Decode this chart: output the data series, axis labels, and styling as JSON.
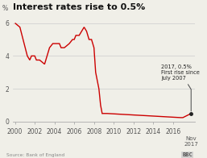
{
  "title": "Interest rates rise to 0.5%",
  "source": "Source: Bank of England",
  "ylabel": "%",
  "background_color": "#f0efe8",
  "line_color": "#cc0000",
  "annotation_text": "2017, 0.5%\nFirst rise since\nJuly 2007",
  "dot_color": "#222222",
  "xlim": [
    1999.8,
    2018.2
  ],
  "ylim": [
    0,
    6.6
  ],
  "yticks": [
    0,
    2,
    4,
    6
  ],
  "xticks": [
    2000,
    2002,
    2004,
    2006,
    2008,
    2010,
    2012,
    2014,
    2016
  ],
  "nov2017_x": 2017.83,
  "data_x": [
    2000.0,
    2000.5,
    2001.25,
    2001.5,
    2001.67,
    2001.83,
    2002.0,
    2002.17,
    2002.5,
    2003.0,
    2003.5,
    2003.83,
    2004.17,
    2004.5,
    2004.67,
    2005.0,
    2005.5,
    2005.83,
    2006.0,
    2006.17,
    2006.5,
    2007.0,
    2007.25,
    2007.5,
    2007.75,
    2008.0,
    2008.17,
    2008.5,
    2008.67,
    2008.83,
    2009.0,
    2009.08,
    2009.17,
    2009.25,
    2009.33,
    2016.75,
    2016.92,
    2017.0,
    2017.83
  ],
  "data_y": [
    6.0,
    5.75,
    4.0,
    3.75,
    4.0,
    4.0,
    4.0,
    3.75,
    3.75,
    3.5,
    4.5,
    4.75,
    4.75,
    4.75,
    4.5,
    4.5,
    4.75,
    5.0,
    5.0,
    5.25,
    5.25,
    5.75,
    5.5,
    5.0,
    5.0,
    4.5,
    3.0,
    2.0,
    1.0,
    0.5,
    0.5,
    0.5,
    0.5,
    0.5,
    0.5,
    0.25,
    0.25,
    0.25,
    0.5
  ],
  "title_fontsize": 8.0,
  "tick_fontsize": 5.5,
  "annotation_fontsize": 4.8,
  "source_fontsize": 4.2
}
